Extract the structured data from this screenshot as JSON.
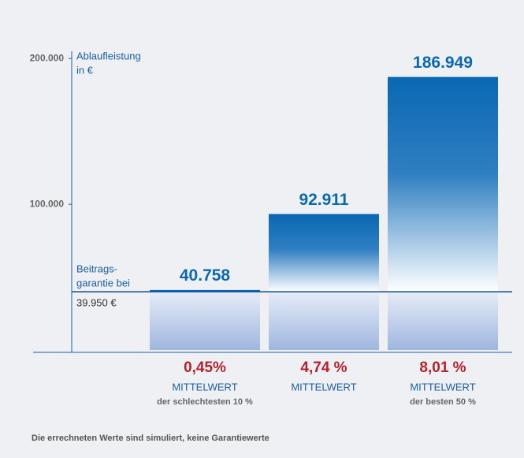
{
  "chart_data": {
    "type": "bar",
    "axis_label": [
      "Ablaufleistung",
      "in €"
    ],
    "categories": [
      "0,45%",
      "4,74 %",
      "8,01 %"
    ],
    "category_labels": [
      "MITTELWERT",
      "MITTELWERT",
      "MITTELWERT"
    ],
    "category_notes": [
      "der schlechtesten 10 %",
      null,
      "der besten 50 %"
    ],
    "values": [
      40758,
      92911,
      186949
    ],
    "value_labels": [
      "40.758",
      "92.911",
      "186.949"
    ],
    "color": "#0a68b2",
    "ylim": [
      0,
      205000
    ],
    "yticks": [
      {
        "value": 100000,
        "label": "100.000"
      },
      {
        "value": 200000,
        "label": "200.000"
      }
    ],
    "guarantee": {
      "label": [
        "Beitrags-",
        "garantie bei"
      ],
      "value": 39950,
      "value_label": "39.950 €"
    },
    "footnote": "Die errechneten Werte sind simuliert, keine Garantiewerte"
  }
}
